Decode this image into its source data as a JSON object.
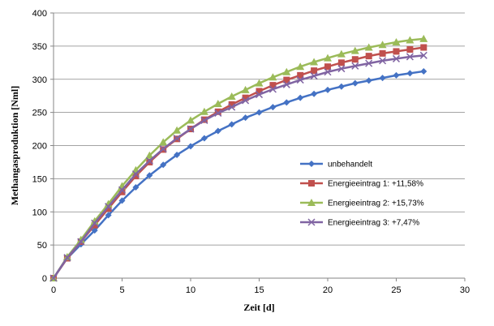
{
  "chart_data": {
    "type": "line",
    "title": "",
    "xlabel": "Zeit [d]",
    "ylabel": "Methangasproduktion [Nml]",
    "xlim": [
      0,
      30
    ],
    "ylim": [
      0,
      400
    ],
    "xticks": [
      0,
      5,
      10,
      15,
      20,
      25,
      30
    ],
    "yticks": [
      0,
      50,
      100,
      150,
      200,
      250,
      300,
      350,
      400
    ],
    "grid": "horizontal",
    "legend_position": "right",
    "x": [
      0,
      1,
      2,
      3,
      4,
      5,
      6,
      7,
      8,
      9,
      10,
      11,
      12,
      13,
      14,
      15,
      16,
      17,
      18,
      19,
      20,
      21,
      22,
      23,
      24,
      25,
      26,
      27
    ],
    "series": [
      {
        "name": "unbehandelt",
        "color": "#4472C4",
        "marker": "diamond",
        "values": [
          0,
          30,
          51,
          72,
          95,
          117,
          137,
          155,
          171,
          186,
          199,
          211,
          222,
          232,
          242,
          250,
          258,
          265,
          272,
          278,
          284,
          289,
          294,
          298,
          302,
          306,
          309,
          312
        ]
      },
      {
        "name": "Energieeintrag 1: +11,58%",
        "color": "#C0504D",
        "marker": "square",
        "values": [
          0,
          30,
          55,
          80,
          105,
          130,
          154,
          175,
          194,
          210,
          225,
          239,
          251,
          262,
          272,
          282,
          291,
          299,
          306,
          313,
          319,
          325,
          330,
          335,
          339,
          342,
          345,
          348
        ]
      },
      {
        "name": "Energieeintrag 2: +15,73%",
        "color": "#9BBB59",
        "marker": "triangle",
        "values": [
          0,
          32,
          58,
          86,
          112,
          139,
          163,
          185,
          205,
          223,
          238,
          251,
          263,
          274,
          284,
          294,
          303,
          311,
          319,
          326,
          332,
          338,
          343,
          348,
          352,
          356,
          359,
          361
        ]
      },
      {
        "name": "Energieeintrag 3: +7,47%",
        "color": "#8064A2",
        "marker": "x",
        "values": [
          0,
          31,
          55,
          83,
          108,
          133,
          157,
          177,
          195,
          211,
          225,
          238,
          249,
          258,
          268,
          277,
          285,
          292,
          299,
          305,
          311,
          316,
          320,
          324,
          328,
          331,
          334,
          336
        ]
      }
    ]
  }
}
